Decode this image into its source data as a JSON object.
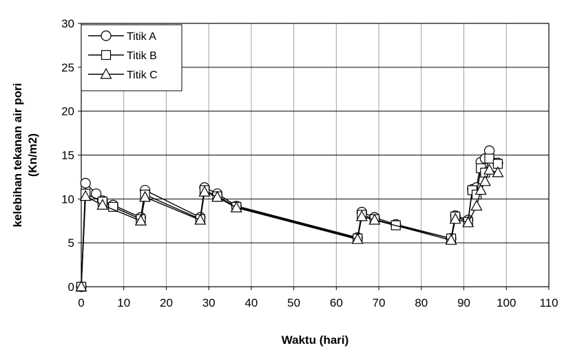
{
  "chart_data": {
    "type": "line",
    "xlabel": "Waktu (hari)",
    "ylabel_lines": [
      "kelebihan tekanan air pori",
      "(Kn/m2)"
    ],
    "xlim": [
      0,
      110
    ],
    "ylim": [
      0,
      30
    ],
    "xticks": [
      0,
      10,
      20,
      30,
      40,
      50,
      60,
      70,
      80,
      90,
      100,
      110
    ],
    "yticks": [
      0,
      5,
      10,
      15,
      20,
      25,
      30
    ],
    "grid": true,
    "legend_position": "top-left",
    "series": [
      {
        "name": "Titik A",
        "marker": "circle",
        "x": [
          0,
          1,
          3.5,
          5,
          7.5,
          14,
          15,
          28,
          29,
          32,
          36.5,
          65,
          66,
          69,
          74,
          87,
          88,
          91,
          92,
          93,
          94,
          95,
          96,
          98
        ],
        "y": [
          0,
          11.8,
          10.6,
          9.8,
          9.3,
          7.9,
          11.0,
          7.9,
          11.3,
          10.6,
          9.2,
          5.6,
          8.5,
          7.9,
          7.1,
          5.5,
          8.1,
          7.6,
          11.1,
          11.3,
          14.2,
          14.6,
          15.5,
          14.1
        ]
      },
      {
        "name": "Titik B",
        "marker": "square",
        "x": [
          0,
          1,
          5,
          7.5,
          14,
          15,
          28,
          29,
          32,
          36.5,
          65,
          66,
          69,
          74,
          87,
          88,
          91,
          92,
          93,
          94,
          95,
          96,
          98
        ],
        "y": [
          0,
          10.6,
          9.7,
          9.1,
          7.7,
          10.5,
          7.7,
          11.0,
          10.3,
          9.1,
          5.5,
          8.2,
          7.7,
          7.0,
          5.5,
          8.0,
          7.4,
          11.0,
          10.5,
          13.5,
          13.0,
          14.6,
          14.0
        ]
      },
      {
        "name": "Titik C",
        "marker": "triangle",
        "x": [
          0,
          1,
          5,
          14,
          15,
          28,
          29,
          32,
          36.5,
          65,
          66,
          69,
          87,
          88,
          91,
          93,
          94,
          95,
          96,
          98
        ],
        "y": [
          0,
          10.3,
          9.3,
          7.5,
          10.2,
          7.6,
          10.8,
          10.2,
          9.0,
          5.4,
          8.0,
          7.6,
          5.3,
          7.7,
          7.3,
          9.2,
          11.0,
          12.0,
          13.3,
          13.0
        ]
      }
    ]
  }
}
